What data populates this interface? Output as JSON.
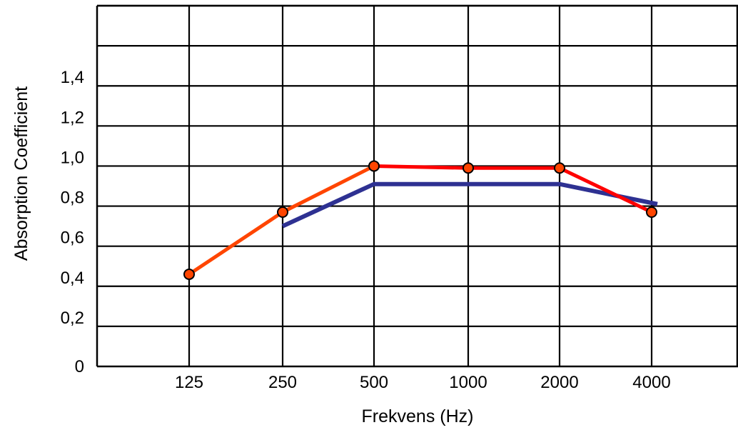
{
  "chart_data": {
    "type": "line",
    "xlabel": "Frekvens (Hz)",
    "ylabel": "Absorption Coefficient",
    "categories": [
      "125",
      "250",
      "500",
      "1000",
      "2000",
      "4000"
    ],
    "y_tick_labels": [
      "0",
      "0,2",
      "0,4",
      "0,6",
      "0,8",
      "1,0",
      "1,2",
      "1,4"
    ],
    "y_tick_values": [
      0,
      0.2,
      0.4,
      0.6,
      0.8,
      1.0,
      1.2,
      1.4
    ],
    "ylim": [
      0,
      1.8
    ],
    "grid": true,
    "series": [
      {
        "color": "#ff4500",
        "marker": "circle",
        "x": [
          "125",
          "250",
          "500",
          "1000",
          "2000",
          "4000"
        ],
        "values": [
          0.46,
          0.77,
          1.0,
          0.99,
          0.99,
          0.77
        ],
        "line_segments": [
          {
            "from": "125",
            "to": "500",
            "color": "#ff4500"
          },
          {
            "from": "500",
            "to": "4000",
            "color": "#ff0000"
          }
        ]
      },
      {
        "color": "#2e3192",
        "marker": "none",
        "x": [
          "250",
          "500",
          "2000",
          "4000"
        ],
        "values": [
          0.7,
          0.91,
          0.91,
          0.81
        ]
      }
    ]
  }
}
